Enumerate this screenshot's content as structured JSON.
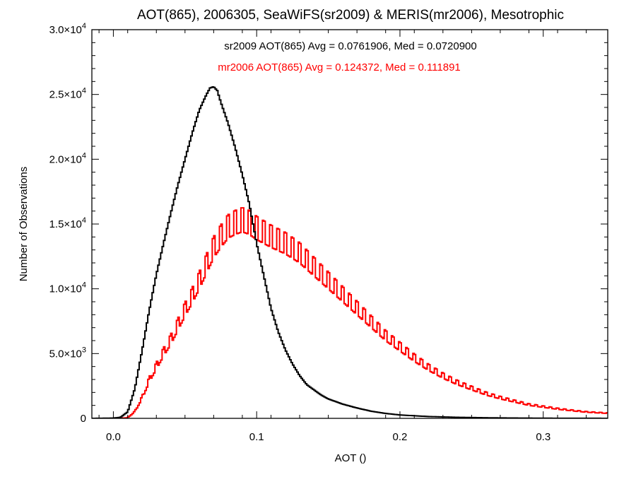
{
  "chart_data": {
    "type": "histogram",
    "title": "AOT(865), 2006305, SeaWiFS(sr2009) & MERIS(mr2006), Mesotrophic",
    "xlabel": "AOT ()",
    "ylabel": "Number of Observations",
    "xlim": [
      -0.015,
      0.345
    ],
    "ylim": [
      0,
      30000
    ],
    "x_ticks": [
      {
        "value": 0.0,
        "label": "0.0"
      },
      {
        "value": 0.1,
        "label": "0.1"
      },
      {
        "value": 0.2,
        "label": "0.2"
      },
      {
        "value": 0.3,
        "label": "0.3"
      }
    ],
    "y_ticks": [
      {
        "value": 0,
        "mantissa": "0",
        "exp": ""
      },
      {
        "value": 5000,
        "mantissa": "5.0×10",
        "exp": "3"
      },
      {
        "value": 10000,
        "mantissa": "1.0×10",
        "exp": "4"
      },
      {
        "value": 15000,
        "mantissa": "1.5×10",
        "exp": "4"
      },
      {
        "value": 20000,
        "mantissa": "2.0×10",
        "exp": "4"
      },
      {
        "value": 25000,
        "mantissa": "2.5×10",
        "exp": "4"
      },
      {
        "value": 30000,
        "mantissa": "3.0×10",
        "exp": "4"
      }
    ],
    "grid": false,
    "legend": "top-center (annotation text)",
    "series": [
      {
        "name": "sr2009",
        "color": "#000000",
        "annotation": "sr2009 AOT(865) Avg = 0.0761906, Med = 0.0720900",
        "stats": {
          "avg": 0.0761906,
          "med": 0.07209
        },
        "anchors": [
          [
            -0.015,
            0
          ],
          [
            0.0,
            20
          ],
          [
            0.005,
            80
          ],
          [
            0.01,
            500
          ],
          [
            0.015,
            2300
          ],
          [
            0.02,
            5200
          ],
          [
            0.025,
            8300
          ],
          [
            0.03,
            11100
          ],
          [
            0.035,
            13500
          ],
          [
            0.04,
            15800
          ],
          [
            0.045,
            18000
          ],
          [
            0.05,
            20000
          ],
          [
            0.055,
            22000
          ],
          [
            0.06,
            23800
          ],
          [
            0.065,
            25000
          ],
          [
            0.0675,
            25500
          ],
          [
            0.07,
            25600
          ],
          [
            0.0725,
            25300
          ],
          [
            0.075,
            24400
          ],
          [
            0.08,
            22800
          ],
          [
            0.085,
            20900
          ],
          [
            0.09,
            18800
          ],
          [
            0.095,
            16500
          ],
          [
            0.1,
            13500
          ],
          [
            0.105,
            11000
          ],
          [
            0.11,
            8500
          ],
          [
            0.115,
            6700
          ],
          [
            0.12,
            5300
          ],
          [
            0.125,
            4200
          ],
          [
            0.13,
            3300
          ],
          [
            0.135,
            2600
          ],
          [
            0.14,
            2200
          ],
          [
            0.145,
            1800
          ],
          [
            0.15,
            1500
          ],
          [
            0.16,
            1100
          ],
          [
            0.17,
            800
          ],
          [
            0.18,
            550
          ],
          [
            0.19,
            380
          ],
          [
            0.2,
            260
          ],
          [
            0.22,
            140
          ],
          [
            0.24,
            80
          ],
          [
            0.26,
            45
          ],
          [
            0.28,
            25
          ],
          [
            0.3,
            12
          ],
          [
            0.32,
            6
          ],
          [
            0.345,
            3
          ]
        ]
      },
      {
        "name": "mr2006",
        "color": "#ff0000",
        "annotation": "mr2006 AOT(865) Avg = 0.124372, Med = 0.111891",
        "stats": {
          "avg": 0.124372,
          "med": 0.111891
        },
        "anchors": [
          [
            -0.015,
            0
          ],
          [
            0.005,
            0
          ],
          [
            0.01,
            50
          ],
          [
            0.015,
            500
          ],
          [
            0.02,
            1500
          ],
          [
            0.025,
            2800
          ],
          [
            0.03,
            3800
          ],
          [
            0.035,
            4800
          ],
          [
            0.04,
            5700
          ],
          [
            0.045,
            6800
          ],
          [
            0.05,
            7900
          ],
          [
            0.055,
            8900
          ],
          [
            0.06,
            10000
          ],
          [
            0.065,
            11200
          ],
          [
            0.07,
            12400
          ],
          [
            0.075,
            13200
          ],
          [
            0.08,
            13900
          ],
          [
            0.085,
            14200
          ],
          [
            0.09,
            14400
          ],
          [
            0.095,
            14200
          ],
          [
            0.1,
            13800
          ],
          [
            0.105,
            13500
          ],
          [
            0.11,
            13200
          ],
          [
            0.12,
            12700
          ],
          [
            0.13,
            12000
          ],
          [
            0.14,
            11000
          ],
          [
            0.15,
            10000
          ],
          [
            0.16,
            9000
          ],
          [
            0.17,
            8000
          ],
          [
            0.18,
            7000
          ],
          [
            0.19,
            6000
          ],
          [
            0.2,
            5200
          ],
          [
            0.21,
            4400
          ],
          [
            0.22,
            3700
          ],
          [
            0.23,
            3100
          ],
          [
            0.24,
            2600
          ],
          [
            0.25,
            2200
          ],
          [
            0.26,
            1800
          ],
          [
            0.27,
            1500
          ],
          [
            0.28,
            1250
          ],
          [
            0.29,
            1000
          ],
          [
            0.3,
            850
          ],
          [
            0.31,
            700
          ],
          [
            0.32,
            580
          ],
          [
            0.33,
            470
          ],
          [
            0.345,
            380
          ]
        ],
        "spike_step": 0.005,
        "spike_extra": 0.13
      }
    ]
  }
}
